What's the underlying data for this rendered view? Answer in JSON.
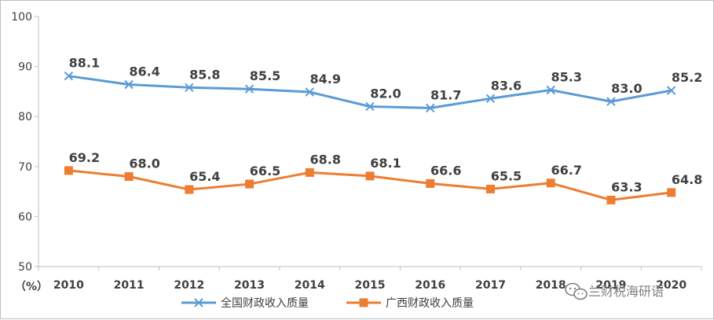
{
  "chart_data": {
    "type": "line",
    "categories": [
      "2010",
      "2011",
      "2012",
      "2013",
      "2014",
      "2015",
      "2016",
      "2017",
      "2018",
      "2019",
      "2020"
    ],
    "y_ticks": [
      "50",
      "60",
      "70",
      "80",
      "90",
      "100"
    ],
    "ylim": [
      50,
      100
    ],
    "yunit": "（%）",
    "grid": false,
    "legend_position": "bottom",
    "series": [
      {
        "name": "全国财政收入质量",
        "color": "#5b9bd5",
        "marker": "x",
        "values": [
          88.1,
          86.4,
          85.8,
          85.5,
          84.9,
          82.0,
          81.7,
          83.6,
          85.3,
          83.0,
          85.2
        ],
        "labels": [
          "88.1",
          "86.4",
          "85.8",
          "85.5",
          "84.9",
          "82.0",
          "81.7",
          "83.6",
          "85.3",
          "83.0",
          "85.2"
        ]
      },
      {
        "name": "广西财政收入质量",
        "color": "#ed7d31",
        "marker": "square",
        "values": [
          69.2,
          68.0,
          65.4,
          66.5,
          68.8,
          68.1,
          66.6,
          65.5,
          66.7,
          63.3,
          64.8
        ],
        "labels": [
          "69.2",
          "68.0",
          "65.4",
          "66.5",
          "68.8",
          "68.1",
          "66.6",
          "65.5",
          "66.7",
          "63.3",
          "64.8"
        ]
      }
    ]
  },
  "watermark": {
    "text": "兰财税海研语",
    "icon": "wechat-icon"
  }
}
